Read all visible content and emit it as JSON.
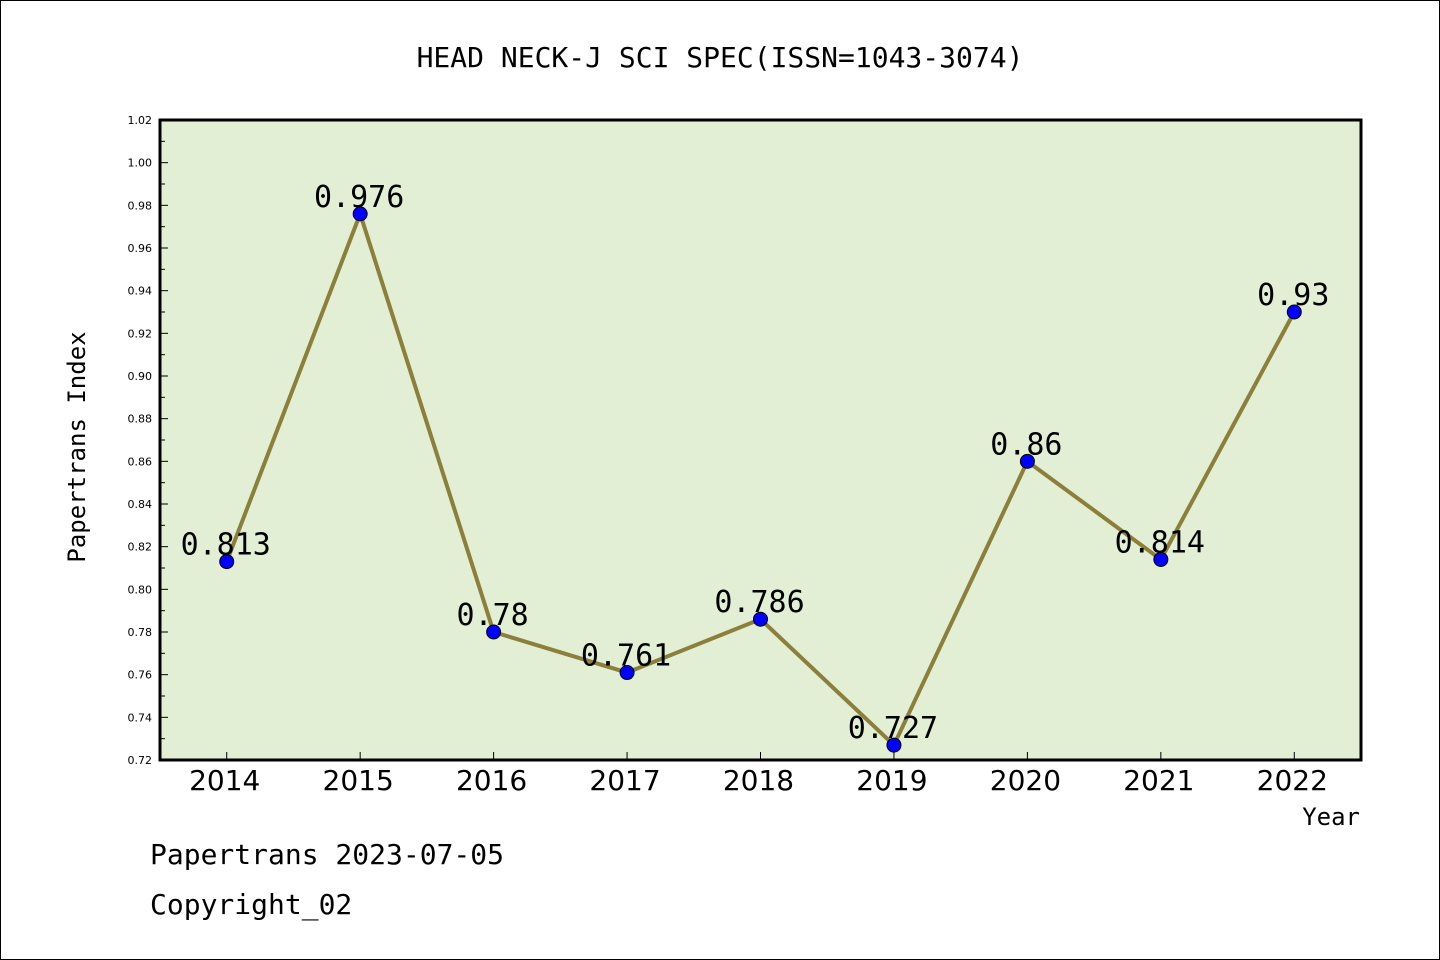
{
  "chart_data": {
    "type": "line",
    "title": "HEAD NECK-J SCI SPEC(ISSN=1043-3074)",
    "xlabel": "Year",
    "ylabel": "Papertrans Index",
    "categories": [
      "2014",
      "2015",
      "2016",
      "2017",
      "2018",
      "2019",
      "2020",
      "2021",
      "2022"
    ],
    "values": [
      0.813,
      0.976,
      0.78,
      0.761,
      0.786,
      0.727,
      0.86,
      0.814,
      0.93
    ],
    "data_labels": [
      "0.813",
      "0.976",
      "0.78",
      "0.761",
      "0.786",
      "0.727",
      "0.86",
      "0.814",
      "0.93"
    ],
    "ylim": [
      0.72,
      1.02
    ],
    "y_ticks": [
      "0.72",
      "0.74",
      "0.76",
      "0.78",
      "0.80",
      "0.82",
      "0.84",
      "0.86",
      "0.88",
      "0.90",
      "0.92",
      "0.94",
      "0.96",
      "0.98",
      "1.00",
      "1.02"
    ],
    "grid": false,
    "legend": "none",
    "colors": {
      "plot_background": "#e2efd5",
      "line": "#8b7f3a",
      "marker": "#0000ff",
      "axis": "#000000"
    }
  },
  "footer": {
    "line1": "Papertrans 2023-07-05",
    "line2": "Copyright_02"
  }
}
